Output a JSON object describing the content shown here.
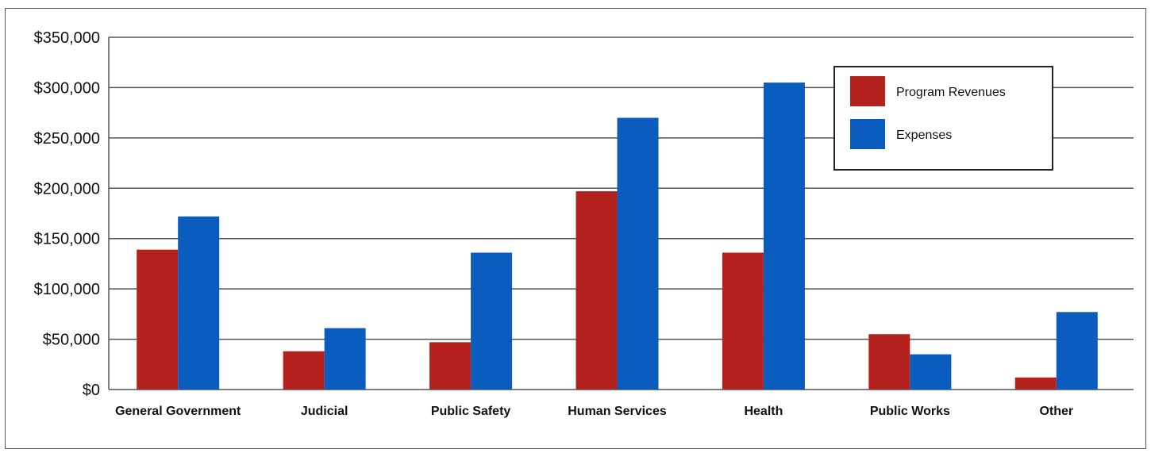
{
  "chart_data": {
    "type": "bar",
    "categories": [
      "General Government",
      "Judicial",
      "Public Safety",
      "Human Services",
      "Health",
      "Public Works",
      "Other"
    ],
    "series": [
      {
        "name": "Program Revenues",
        "color": "#b5211d",
        "values": [
          139000,
          38000,
          47000,
          197000,
          136000,
          55000,
          12000
        ]
      },
      {
        "name": "Expenses",
        "color": "#0b5cbf",
        "values": [
          172000,
          61000,
          136000,
          270000,
          305000,
          35000,
          77000
        ]
      }
    ],
    "ylim": [
      0,
      350000
    ],
    "yticks": [
      "$0",
      "$50,000",
      "$100,000",
      "$150,000",
      "$200,000",
      "$250,000",
      "$300,000",
      "$350,000"
    ],
    "grid": true,
    "legend": "top-right"
  }
}
